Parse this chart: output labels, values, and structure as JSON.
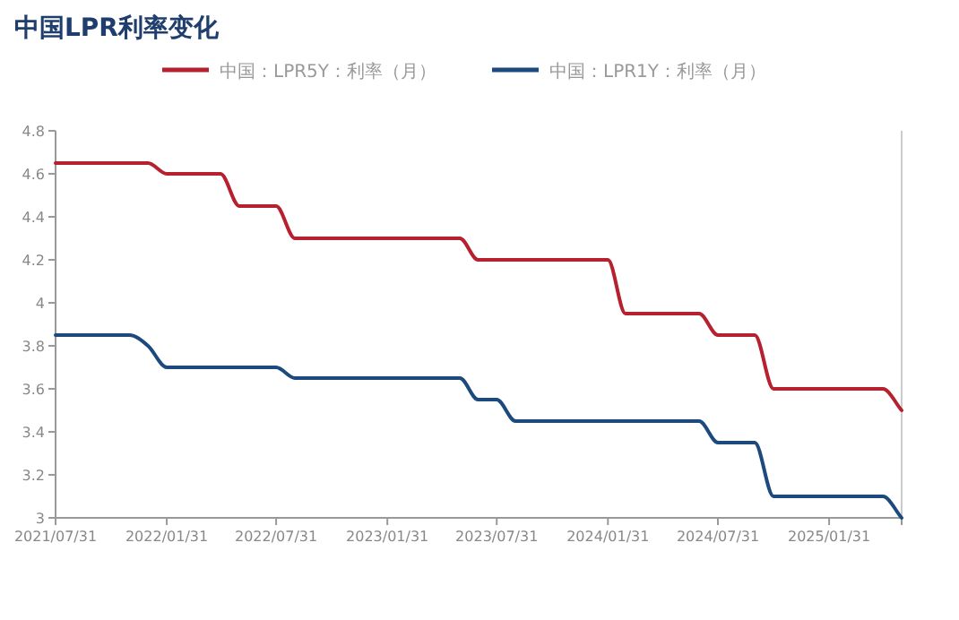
{
  "chart_data": {
    "type": "line",
    "title": "中国LPR利率变化",
    "legend": "top",
    "x": [
      "2021-07-31",
      "2021-08-31",
      "2021-09-30",
      "2021-10-31",
      "2021-11-30",
      "2021-12-31",
      "2022-01-31",
      "2022-02-28",
      "2022-03-31",
      "2022-04-30",
      "2022-05-31",
      "2022-06-30",
      "2022-07-31",
      "2022-08-31",
      "2022-09-30",
      "2022-10-31",
      "2022-11-30",
      "2022-12-31",
      "2023-01-31",
      "2023-02-28",
      "2023-03-31",
      "2023-04-30",
      "2023-05-31",
      "2023-06-30",
      "2023-07-31",
      "2023-08-31",
      "2023-09-30",
      "2023-10-31",
      "2023-11-30",
      "2023-12-31",
      "2024-01-31",
      "2024-02-29",
      "2024-03-31",
      "2024-04-30",
      "2024-05-31",
      "2024-06-30",
      "2024-07-31",
      "2024-08-31",
      "2024-09-30",
      "2024-10-31",
      "2024-11-30",
      "2024-12-31",
      "2025-01-31",
      "2025-02-28",
      "2025-03-31",
      "2025-04-30",
      "2025-05-31"
    ],
    "series": [
      {
        "name": "中国：LPR5Y：利率（月）",
        "color": "#b7202e",
        "values": [
          4.65,
          4.65,
          4.65,
          4.65,
          4.65,
          4.65,
          4.6,
          4.6,
          4.6,
          4.6,
          4.45,
          4.45,
          4.45,
          4.3,
          4.3,
          4.3,
          4.3,
          4.3,
          4.3,
          4.3,
          4.3,
          4.3,
          4.3,
          4.2,
          4.2,
          4.2,
          4.2,
          4.2,
          4.2,
          4.2,
          4.2,
          3.95,
          3.95,
          3.95,
          3.95,
          3.95,
          3.85,
          3.85,
          3.85,
          3.6,
          3.6,
          3.6,
          3.6,
          3.6,
          3.6,
          3.6,
          3.5
        ]
      },
      {
        "name": "中国：LPR1Y：利率（月）",
        "color": "#1c4a7e",
        "values": [
          3.85,
          3.85,
          3.85,
          3.85,
          3.85,
          3.8,
          3.7,
          3.7,
          3.7,
          3.7,
          3.7,
          3.7,
          3.7,
          3.65,
          3.65,
          3.65,
          3.65,
          3.65,
          3.65,
          3.65,
          3.65,
          3.65,
          3.65,
          3.55,
          3.55,
          3.45,
          3.45,
          3.45,
          3.45,
          3.45,
          3.45,
          3.45,
          3.45,
          3.45,
          3.45,
          3.45,
          3.35,
          3.35,
          3.35,
          3.1,
          3.1,
          3.1,
          3.1,
          3.1,
          3.1,
          3.1,
          3.0
        ]
      }
    ],
    "xlim": [
      "2021-07-31",
      "2025-05-31"
    ],
    "xticks": [
      {
        "value": "2021-07-31",
        "label": "2021/07/31"
      },
      {
        "value": "2022-01-31",
        "label": "2022/01/31"
      },
      {
        "value": "2022-07-31",
        "label": "2022/07/31"
      },
      {
        "value": "2023-01-31",
        "label": "2023/01/31"
      },
      {
        "value": "2023-07-31",
        "label": "2023/07/31"
      },
      {
        "value": "2024-01-31",
        "label": "2024/01/31"
      },
      {
        "value": "2024-07-31",
        "label": "2024/07/31"
      },
      {
        "value": "2025-01-31",
        "label": "2025/01/31"
      },
      {
        "value": "2025-05-31",
        "label": null
      }
    ],
    "ylim": [
      3,
      4.8
    ],
    "yticks": [
      3,
      3.2,
      3.4,
      3.6,
      3.8,
      4,
      4.2,
      4.4,
      4.6,
      4.8
    ]
  }
}
